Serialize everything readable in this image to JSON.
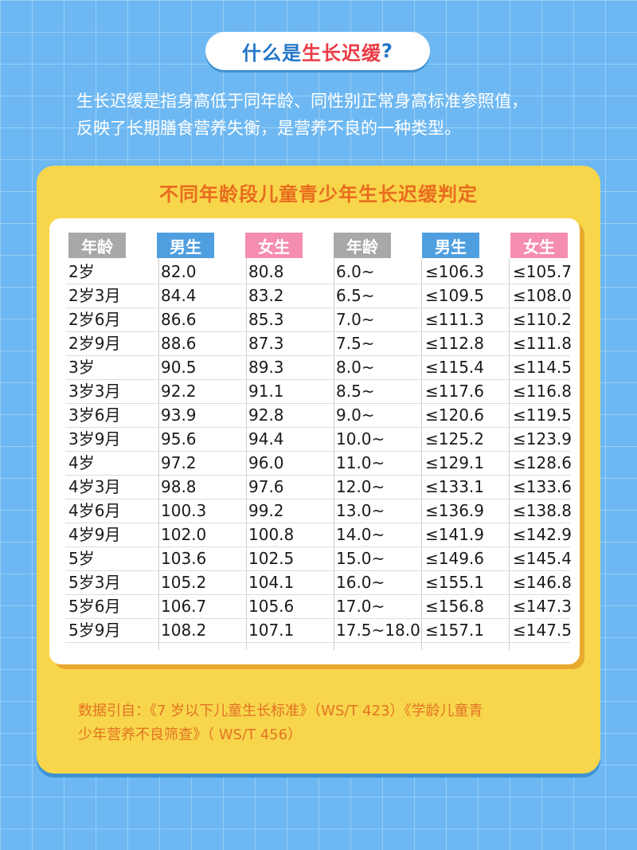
{
  "header": {
    "title_part1": "什么是",
    "title_part2": "生长迟缓",
    "title_part3": "?"
  },
  "intro": {
    "line1": "生长迟缓是指身高低于同年龄、同性别正常身高标准参照值，",
    "line2": "反映了长期膳食营养失衡，是营养不良的一种类型。"
  },
  "card": {
    "title": "不同年龄段儿童青少年生长迟缓判定",
    "columns": [
      "年龄",
      "男生",
      "女生",
      "年龄",
      "男生",
      "女生"
    ],
    "rows": [
      {
        "age1": "2岁",
        "male1": "82.0",
        "female1": "80.8",
        "age2": "6.0~",
        "male2": "≤106.3",
        "female2": "≤105.7"
      },
      {
        "age1": "2岁3月",
        "male1": "84.4",
        "female1": "83.2",
        "age2": "6.5~",
        "male2": "≤109.5",
        "female2": "≤108.0"
      },
      {
        "age1": "2岁6月",
        "male1": "86.6",
        "female1": "85.3",
        "age2": "7.0~",
        "male2": "≤111.3",
        "female2": "≤110.2"
      },
      {
        "age1": "2岁9月",
        "male1": "88.6",
        "female1": "87.3",
        "age2": "7.5~",
        "male2": "≤112.8",
        "female2": "≤111.8"
      },
      {
        "age1": "3岁",
        "male1": "90.5",
        "female1": "89.3",
        "age2": "8.0~",
        "male2": "≤115.4",
        "female2": "≤114.5"
      },
      {
        "age1": "3岁3月",
        "male1": "92.2",
        "female1": "91.1",
        "age2": "8.5~",
        "male2": "≤117.6",
        "female2": "≤116.8"
      },
      {
        "age1": "3岁6月",
        "male1": "93.9",
        "female1": "92.8",
        "age2": "9.0~",
        "male2": "≤120.6",
        "female2": "≤119.5"
      },
      {
        "age1": "3岁9月",
        "male1": "95.6",
        "female1": "94.4",
        "age2": "10.0~",
        "male2": "≤125.2",
        "female2": "≤123.9"
      },
      {
        "age1": "4岁",
        "male1": "97.2",
        "female1": "96.0",
        "age2": "11.0~",
        "male2": "≤129.1",
        "female2": "≤128.6"
      },
      {
        "age1": "4岁3月",
        "male1": "98.8",
        "female1": "97.6",
        "age2": "12.0~",
        "male2": "≤133.1",
        "female2": "≤133.6"
      },
      {
        "age1": "4岁6月",
        "male1": "100.3",
        "female1": "99.2",
        "age2": "13.0~",
        "male2": "≤136.9",
        "female2": "≤138.8"
      },
      {
        "age1": "4岁9月",
        "male1": "102.0",
        "female1": "100.8",
        "age2": "14.0~",
        "male2": "≤141.9",
        "female2": "≤142.9"
      },
      {
        "age1": "5岁",
        "male1": "103.6",
        "female1": "102.5",
        "age2": "15.0~",
        "male2": "≤149.6",
        "female2": "≤145.4"
      },
      {
        "age1": "5岁3月",
        "male1": "105.2",
        "female1": "104.1",
        "age2": "16.0~",
        "male2": "≤155.1",
        "female2": "≤146.8"
      },
      {
        "age1": "5岁6月",
        "male1": "106.7",
        "female1": "105.6",
        "age2": "17.0~",
        "male2": "≤156.8",
        "female2": "≤147.3"
      },
      {
        "age1": "5岁9月",
        "male1": "108.2",
        "female1": "107.1",
        "age2": "17.5~18.0",
        "male2": "≤157.1",
        "female2": "≤147.5"
      }
    ],
    "footnote_line1": "数据引自：《7 岁以下儿童生长标准》（WS/T 423）《学龄儿童青",
    "footnote_line2": "少年营养不良筛查》（ WS/T 456）"
  },
  "colors": {
    "background": "#6db8f2",
    "card": "#f8d64b",
    "title_blue": "#2276c9",
    "title_red": "#ea3b46",
    "card_title": "#e86c1e",
    "header_age": "#a8a8a8",
    "header_male": "#4f9fe0",
    "header_female": "#f58dae"
  }
}
